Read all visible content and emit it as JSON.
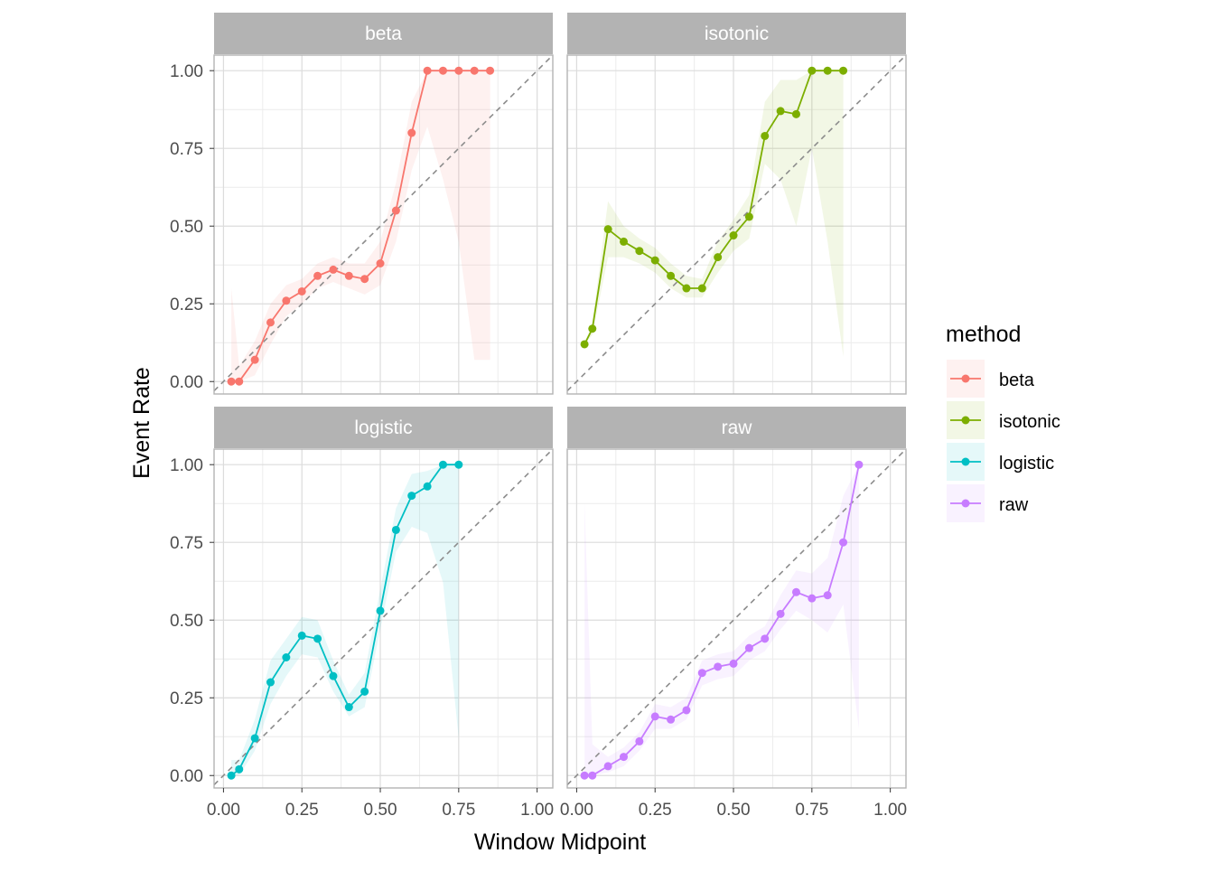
{
  "chart_data": {
    "type": "line",
    "facet_by": "method",
    "xlabel": "Window Midpoint",
    "ylabel": "Event Rate",
    "xlim": [
      -0.03,
      1.05
    ],
    "ylim": [
      -0.04,
      1.05
    ],
    "x_ticks": [
      "0.00",
      "0.25",
      "0.50",
      "0.75",
      "1.00"
    ],
    "y_ticks": [
      "0.00",
      "0.25",
      "0.50",
      "0.75",
      "1.00"
    ],
    "grid": true,
    "reference_line": "diagonal y = x (dashed)",
    "legend": {
      "title": "method",
      "position": "right"
    },
    "series": [
      {
        "name": "beta",
        "color": "#F8766D",
        "x": [
          0.025,
          0.05,
          0.1,
          0.15,
          0.2,
          0.25,
          0.3,
          0.35,
          0.4,
          0.45,
          0.5,
          0.55,
          0.6,
          0.65,
          0.7,
          0.75,
          0.8,
          0.85
        ],
        "y": [
          0.0,
          0.0,
          0.07,
          0.19,
          0.26,
          0.29,
          0.34,
          0.36,
          0.34,
          0.33,
          0.38,
          0.55,
          0.8,
          1.0,
          1.0,
          1.0,
          1.0,
          1.0
        ],
        "lower": [
          0.0,
          0.0,
          0.02,
          0.12,
          0.21,
          0.25,
          0.3,
          0.32,
          0.3,
          0.28,
          0.31,
          0.45,
          0.68,
          0.82,
          0.65,
          0.45,
          0.07,
          0.07
        ],
        "upper": [
          0.3,
          0.05,
          0.13,
          0.25,
          0.31,
          0.33,
          0.38,
          0.4,
          0.38,
          0.38,
          0.45,
          0.64,
          0.9,
          1.0,
          1.0,
          1.0,
          1.0,
          1.0
        ]
      },
      {
        "name": "isotonic",
        "color": "#7CAE00",
        "x": [
          0.025,
          0.05,
          0.1,
          0.15,
          0.2,
          0.25,
          0.3,
          0.35,
          0.4,
          0.45,
          0.5,
          0.55,
          0.6,
          0.65,
          0.7,
          0.75,
          0.8,
          0.85
        ],
        "y": [
          0.12,
          0.17,
          0.49,
          0.45,
          0.42,
          0.39,
          0.34,
          0.3,
          0.3,
          0.4,
          0.47,
          0.53,
          0.79,
          0.87,
          0.86,
          1.0,
          1.0,
          1.0
        ],
        "lower": [
          0.12,
          0.15,
          0.4,
          0.4,
          0.38,
          0.35,
          0.3,
          0.27,
          0.27,
          0.35,
          0.42,
          0.46,
          0.7,
          0.65,
          0.5,
          0.75,
          0.45,
          0.08
        ],
        "upper": [
          0.12,
          0.19,
          0.58,
          0.5,
          0.46,
          0.43,
          0.38,
          0.34,
          0.33,
          0.45,
          0.52,
          0.6,
          0.9,
          0.97,
          0.97,
          1.0,
          1.0,
          1.0
        ]
      },
      {
        "name": "logistic",
        "color": "#00BFC4",
        "x": [
          0.025,
          0.05,
          0.1,
          0.15,
          0.2,
          0.25,
          0.3,
          0.35,
          0.4,
          0.45,
          0.5,
          0.55,
          0.6,
          0.65,
          0.7,
          0.75
        ],
        "y": [
          0.0,
          0.02,
          0.12,
          0.3,
          0.38,
          0.45,
          0.44,
          0.32,
          0.22,
          0.27,
          0.53,
          0.79,
          0.9,
          0.93,
          1.0,
          1.0
        ],
        "lower": [
          0.0,
          0.0,
          0.08,
          0.23,
          0.32,
          0.39,
          0.38,
          0.27,
          0.19,
          0.22,
          0.47,
          0.72,
          0.8,
          0.78,
          0.62,
          0.12
        ],
        "upper": [
          0.05,
          0.05,
          0.18,
          0.37,
          0.44,
          0.51,
          0.5,
          0.37,
          0.26,
          0.33,
          0.6,
          0.86,
          0.97,
          0.98,
          1.0,
          1.0
        ]
      },
      {
        "name": "raw",
        "color": "#C77CFF",
        "x": [
          0.025,
          0.05,
          0.1,
          0.15,
          0.2,
          0.25,
          0.3,
          0.35,
          0.4,
          0.45,
          0.5,
          0.55,
          0.6,
          0.65,
          0.7,
          0.75,
          0.8,
          0.85,
          0.9
        ],
        "y": [
          0.0,
          0.0,
          0.03,
          0.06,
          0.11,
          0.19,
          0.18,
          0.21,
          0.33,
          0.35,
          0.36,
          0.41,
          0.44,
          0.52,
          0.59,
          0.57,
          0.58,
          0.75,
          1.0
        ],
        "lower": [
          0.0,
          0.0,
          0.01,
          0.03,
          0.08,
          0.15,
          0.15,
          0.18,
          0.29,
          0.31,
          0.32,
          0.37,
          0.4,
          0.47,
          0.53,
          0.5,
          0.46,
          0.55,
          0.15
        ],
        "upper": [
          0.88,
          0.1,
          0.06,
          0.09,
          0.14,
          0.23,
          0.22,
          0.25,
          0.37,
          0.39,
          0.4,
          0.45,
          0.48,
          0.58,
          0.66,
          0.65,
          0.7,
          0.9,
          1.0
        ]
      }
    ]
  }
}
